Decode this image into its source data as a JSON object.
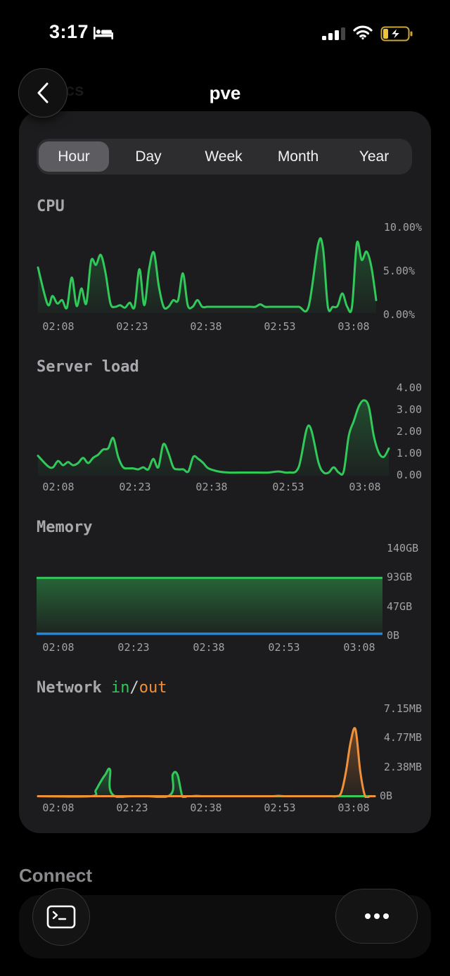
{
  "status_bar": {
    "time": "3:17",
    "icons": [
      "bed-icon",
      "cellular-signal-icon",
      "wifi-icon",
      "battery-charging-icon"
    ]
  },
  "header": {
    "title": "pve",
    "ghost_title": "tics",
    "back_icon": "chevron-left-icon"
  },
  "periods": [
    "Hour",
    "Day",
    "Week",
    "Month",
    "Year"
  ],
  "selected_period": "Hour",
  "colors": {
    "in": "#30c95a",
    "out": "#f0913a",
    "memory_used": "#34c759",
    "memory_other": "#1e88e5",
    "card": "#1c1c1e"
  },
  "charts": {
    "cpu": {
      "title": "CPU",
      "y_ticks": [
        "10.00%",
        "5.00%",
        "0.00%"
      ],
      "x_ticks": [
        "02:08",
        "02:23",
        "02:38",
        "02:53",
        "03:08"
      ]
    },
    "load": {
      "title": "Server load",
      "y_ticks": [
        "4.00",
        "3.00",
        "2.00",
        "1.00",
        "0.00"
      ],
      "x_ticks": [
        "02:08",
        "02:23",
        "02:38",
        "02:53",
        "03:08"
      ]
    },
    "memory": {
      "title": "Memory",
      "y_ticks": [
        "140GB",
        "93GB",
        "47GB",
        "0B"
      ],
      "x_ticks": [
        "02:08",
        "02:23",
        "02:38",
        "02:53",
        "03:08"
      ]
    },
    "network": {
      "title": "Network",
      "legend_in": "in",
      "legend_sep": "/",
      "legend_out": "out",
      "y_ticks": [
        "7.15MB",
        "4.77MB",
        "2.38MB",
        "0B"
      ],
      "x_ticks": [
        "02:08",
        "02:23",
        "02:38",
        "02:53",
        "03:08"
      ]
    }
  },
  "chart_data": [
    {
      "type": "area",
      "title": "CPU",
      "unit": "%",
      "ylim": [
        0,
        10
      ],
      "x": [
        0,
        2,
        3,
        4,
        5,
        6,
        7,
        8,
        9,
        10,
        11,
        12,
        13,
        14,
        15,
        16,
        17,
        18,
        19,
        20,
        21,
        22,
        23,
        24,
        25,
        26,
        27,
        28,
        29,
        30,
        31,
        32,
        33,
        34,
        35,
        36,
        37,
        38,
        39,
        40,
        41,
        42,
        43,
        44,
        45,
        46,
        47,
        48,
        50,
        52,
        54,
        56,
        58,
        59,
        60,
        61,
        62,
        63,
        64,
        65,
        66,
        67,
        68,
        69,
        70
      ],
      "x_ticks": [
        "02:08",
        "02:23",
        "02:38",
        "02:53",
        "03:08"
      ],
      "series": [
        {
          "values": [
            5.2,
            0.8,
            1.8,
            0.9,
            1.3,
            0.4,
            4.0,
            0.6,
            2.7,
            0.9,
            6.0,
            5.5,
            6.7,
            4.5,
            0.9,
            0.5,
            0.7,
            0.4,
            1.0,
            0.5,
            5.0,
            0.7,
            5.0,
            7.0,
            3.0,
            0.5,
            0.5,
            1.3,
            1.3,
            4.5,
            0.7,
            0.5,
            1.3,
            0.5,
            0.5,
            0.5,
            0.5,
            0.5,
            0.5,
            0.5,
            0.5,
            0.5,
            0.5,
            0.5,
            0.5,
            0.8,
            0.5,
            0.5,
            0.5,
            0.5,
            0.5,
            0.5,
            8.0,
            7.5,
            0.5,
            0.5,
            0.6,
            2.1,
            0.5,
            0.5,
            8.1,
            6.1,
            7.1,
            5.3,
            1.3
          ]
        }
      ]
    },
    {
      "type": "area",
      "title": "Server load",
      "ylim": [
        0,
        4
      ],
      "x": [
        0,
        2,
        3,
        4,
        5,
        6,
        7,
        8,
        9,
        10,
        11,
        12,
        13,
        14,
        15,
        16,
        17,
        18,
        19,
        20,
        21,
        22,
        23,
        24,
        25,
        26,
        27,
        28,
        29,
        30,
        31,
        32,
        33,
        34,
        36,
        38,
        40,
        42,
        44,
        46,
        48,
        50,
        52,
        54,
        56,
        57,
        58,
        59,
        60,
        61,
        62,
        63,
        64,
        65,
        66,
        67,
        68,
        69,
        70
      ],
      "x_ticks": [
        "02:08",
        "02:23",
        "02:38",
        "02:53",
        "03:08"
      ],
      "series": [
        {
          "values": [
            0.85,
            0.35,
            0.3,
            0.6,
            0.4,
            0.55,
            0.4,
            0.5,
            0.75,
            0.5,
            0.75,
            0.9,
            1.15,
            1.2,
            1.7,
            0.8,
            0.3,
            0.25,
            0.25,
            0.2,
            0.3,
            0.2,
            0.7,
            0.3,
            1.4,
            1.0,
            0.3,
            0.2,
            0.2,
            0.1,
            0.8,
            0.7,
            0.5,
            0.25,
            0.1,
            0.05,
            0.05,
            0.05,
            0.05,
            0.05,
            0.1,
            0.05,
            0.3,
            2.3,
            0.5,
            0.05,
            0.05,
            0.3,
            0.05,
            0.1,
            1.8,
            2.5,
            3.2,
            3.5,
            3.2,
            1.8,
            1.0,
            0.8,
            1.2
          ]
        }
      ]
    },
    {
      "type": "area",
      "title": "Memory",
      "ylim": [
        0,
        140
      ],
      "x_ticks": [
        "02:08",
        "02:23",
        "02:38",
        "02:53",
        "03:08"
      ],
      "x": [
        0,
        70
      ],
      "series": [
        {
          "values": [
            93,
            93
          ]
        },
        {
          "values": [
            0.5,
            0.5
          ]
        }
      ]
    },
    {
      "type": "line",
      "title": "Network",
      "ylim": [
        0,
        7.15
      ],
      "y_unit": "MB",
      "x_ticks": [
        "02:08",
        "02:23",
        "02:38",
        "02:53",
        "03:08"
      ],
      "series": [
        {
          "name": "in",
          "x": [
            0,
            11,
            12,
            13,
            14,
            15,
            16,
            27,
            28,
            29,
            30,
            31,
            32,
            33,
            34,
            35,
            36,
            70
          ],
          "values": [
            0,
            0,
            0.5,
            1.2,
            1.8,
            2.2,
            0,
            0,
            1.8,
            1.8,
            0,
            0,
            0,
            0.06,
            0,
            0,
            0,
            0
          ]
        },
        {
          "name": "out",
          "x": [
            0,
            42,
            43,
            44,
            45,
            46,
            47,
            48,
            49,
            50,
            51,
            52,
            53,
            54,
            55,
            56,
            57,
            58,
            59,
            60,
            61,
            62,
            63,
            64,
            65,
            66,
            67,
            68,
            69,
            70
          ],
          "values": [
            0,
            0,
            0,
            0,
            0,
            0,
            0,
            0,
            0,
            0.06,
            0,
            0,
            0,
            0,
            0,
            0,
            0,
            0,
            0,
            0,
            0,
            0,
            0.3,
            2.0,
            4.5,
            5.5,
            2.0,
            0,
            0,
            0
          ]
        }
      ]
    }
  ],
  "connect": {
    "label": "Connect",
    "terminal_icon": "terminal-icon",
    "more_icon": "more-icon"
  }
}
